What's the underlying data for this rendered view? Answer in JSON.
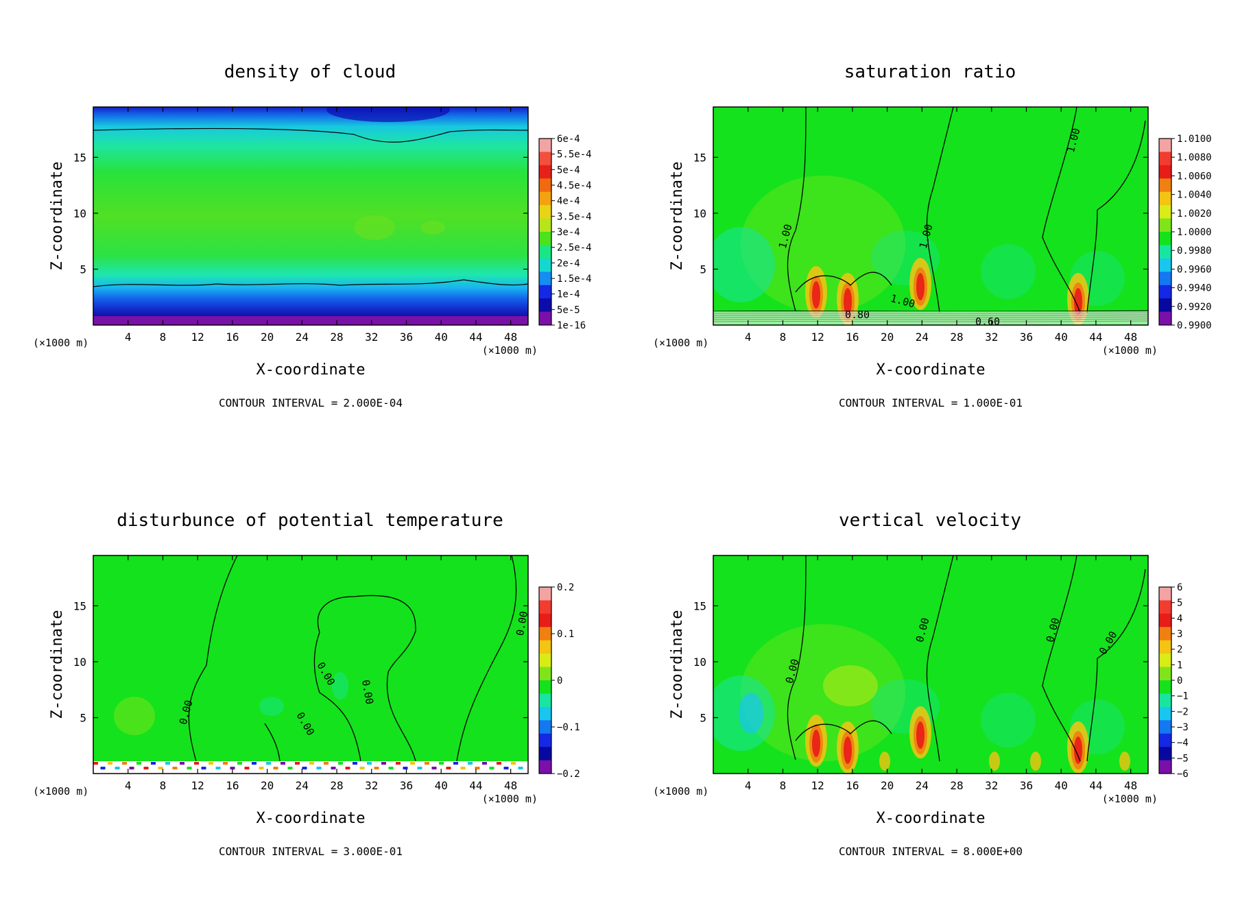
{
  "figure": {
    "contour_label": "CONTOUR INTERVAL =",
    "x_unit": "(×1000 m)"
  },
  "chart_data": [
    {
      "type": "heatmap",
      "title": "density of cloud",
      "xlabel": "X-coordinate",
      "ylabel": "Z-coordinate",
      "x_unit": "(×1000 m)",
      "xlim": [
        0,
        50
      ],
      "ylim": [
        0,
        19.5
      ],
      "x_ticks": [
        4,
        8,
        12,
        16,
        20,
        24,
        28,
        32,
        36,
        40,
        44,
        48
      ],
      "y_ticks": [
        5,
        10,
        15
      ],
      "colorbar": [
        "6e-4",
        "5.5e-4",
        "5e-4",
        "4.5e-4",
        "4e-4",
        "3.5e-4",
        "3e-4",
        "2.5e-4",
        "2e-4",
        "1.5e-4",
        "1e-4",
        "5e-5",
        "1e-16"
      ],
      "contour_interval": "2.000E-04",
      "contour_labels": []
    },
    {
      "type": "heatmap",
      "title": "saturation ratio",
      "xlabel": "X-coordinate",
      "ylabel": "Z-coordinate",
      "x_unit": "(×1000 m)",
      "xlim": [
        0,
        50
      ],
      "ylim": [
        0,
        19.5
      ],
      "x_ticks": [
        4,
        8,
        12,
        16,
        20,
        24,
        28,
        32,
        36,
        40,
        44,
        48
      ],
      "y_ticks": [
        5,
        10,
        15
      ],
      "colorbar": [
        "1.0100",
        "1.0080",
        "1.0060",
        "1.0040",
        "1.0020",
        "1.0000",
        "0.9980",
        "0.9960",
        "0.9940",
        "0.9920",
        "0.9900"
      ],
      "contour_interval": "1.000E-01",
      "contour_labels": [
        "1.00",
        "1.00",
        "1.00",
        "1.00",
        "0.80",
        "0.60"
      ]
    },
    {
      "type": "heatmap",
      "title": "disturbunce of potential temperature",
      "xlabel": "X-coordinate",
      "ylabel": "Z-coordinate",
      "x_unit": "(×1000 m)",
      "xlim": [
        0,
        50
      ],
      "ylim": [
        0,
        19.5
      ],
      "x_ticks": [
        4,
        8,
        12,
        16,
        20,
        24,
        28,
        32,
        36,
        40,
        44,
        48
      ],
      "y_ticks": [
        5,
        10,
        15
      ],
      "colorbar": [
        "0.2",
        "0.1",
        "0",
        "−0.1",
        "−0.2"
      ],
      "contour_interval": "3.000E-01",
      "contour_labels": [
        "0.00",
        "0.00",
        "0.00",
        "0.00",
        "0.00"
      ]
    },
    {
      "type": "heatmap",
      "title": "vertical velocity",
      "xlabel": "X-coordinate",
      "ylabel": "Z-coordinate",
      "x_unit": "(×1000 m)",
      "xlim": [
        0,
        50
      ],
      "ylim": [
        0,
        19.5
      ],
      "x_ticks": [
        4,
        8,
        12,
        16,
        20,
        24,
        28,
        32,
        36,
        40,
        44,
        48
      ],
      "y_ticks": [
        5,
        10,
        15
      ],
      "colorbar": [
        "6",
        "5",
        "4",
        "3",
        "2",
        "1",
        "0",
        "−1",
        "−2",
        "−3",
        "−4",
        "−5",
        "−6"
      ],
      "contour_interval": "8.000E+00",
      "contour_labels": [
        "0.00",
        "0.00",
        "0.00",
        "0.00"
      ]
    }
  ]
}
